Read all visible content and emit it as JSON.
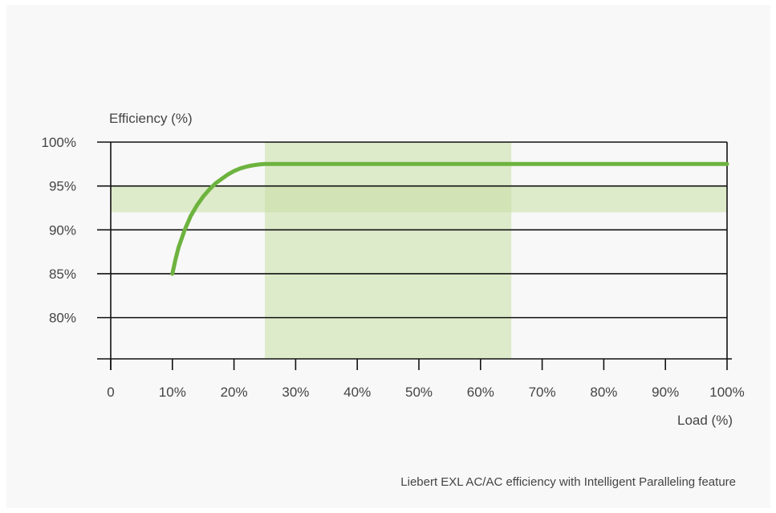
{
  "chart_data": {
    "type": "line",
    "ylabel": "Efficiency (%)",
    "xlabel": "Load (%)",
    "caption": "Liebert EXL AC/AC efficiency with Intelligent Paralleling feature",
    "x_ticks": [
      {
        "value": 0,
        "label": "0"
      },
      {
        "value": 10,
        "label": "10%"
      },
      {
        "value": 20,
        "label": "20%"
      },
      {
        "value": 30,
        "label": "30%"
      },
      {
        "value": 40,
        "label": "40%"
      },
      {
        "value": 50,
        "label": "50%"
      },
      {
        "value": 60,
        "label": "60%"
      },
      {
        "value": 70,
        "label": "70%"
      },
      {
        "value": 80,
        "label": "80%"
      },
      {
        "value": 90,
        "label": "90%"
      },
      {
        "value": 100,
        "label": "100%"
      }
    ],
    "y_ticks": [
      {
        "value": 100,
        "label": "100%"
      },
      {
        "value": 95,
        "label": "95%"
      },
      {
        "value": 90,
        "label": "90%"
      },
      {
        "value": 85,
        "label": "85%"
      },
      {
        "value": 80,
        "label": "80%"
      }
    ],
    "xlim": [
      0,
      100
    ],
    "ylim": [
      75.3,
      100
    ],
    "grid": true,
    "highlight_bands": [
      {
        "axis": "x",
        "from": 25,
        "to": 65
      },
      {
        "axis": "y",
        "from": 92,
        "to": 95
      }
    ],
    "series": [
      {
        "color": "#6db33f",
        "x": [
          10,
          10.5,
          11,
          12,
          13,
          14,
          15,
          16,
          17,
          18,
          19,
          20,
          21,
          22,
          23,
          24,
          25,
          30,
          40,
          50,
          60,
          70,
          80,
          90,
          100
        ],
        "y": [
          85.0,
          86.6,
          88.0,
          90.0,
          91.6,
          92.8,
          93.8,
          94.6,
          95.3,
          95.8,
          96.3,
          96.7,
          97.0,
          97.2,
          97.35,
          97.45,
          97.5,
          97.5,
          97.5,
          97.5,
          97.5,
          97.5,
          97.5,
          97.5,
          97.5
        ]
      }
    ],
    "colors": {
      "line": "#6db33f",
      "band": "#c5de9f",
      "grid": "#111111",
      "background": "#f7f8f7"
    }
  }
}
